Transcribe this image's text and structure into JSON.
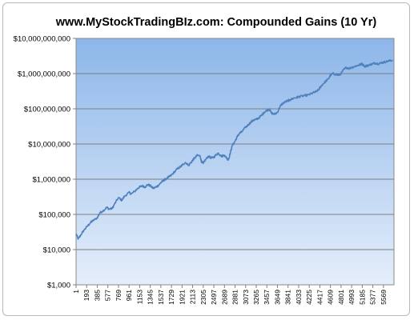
{
  "chart_data": {
    "type": "line",
    "title": "www.MyStockTradingBIz.com:  Compounded Gains (10 Yr)",
    "xlabel": "",
    "ylabel": "",
    "y_scale": "log",
    "ylim": [
      1000,
      10000000000
    ],
    "xlim": [
      1,
      5760
    ],
    "grid": true,
    "legend": "none",
    "y_ticks": [
      1000,
      10000,
      100000,
      1000000,
      10000000,
      100000000,
      1000000000,
      10000000000
    ],
    "y_tick_labels": [
      "$1,000",
      "$10,000",
      "$100,000",
      "$1,000,000",
      "$10,000,000",
      "$100,000,000",
      "$1,000,000,000",
      "$10,000,000,000"
    ],
    "x_tick_labels": [
      "1",
      "193",
      "385",
      "577",
      "769",
      "961",
      "1153",
      "1345",
      "1537",
      "1729",
      "1921",
      "2113",
      "2305",
      "2497",
      "2689",
      "2881",
      "3073",
      "3265",
      "3457",
      "3649",
      "3841",
      "4033",
      "4225",
      "4417",
      "4609",
      "4801",
      "4993",
      "5185",
      "5377",
      "5569"
    ],
    "series": [
      {
        "color": "#4f81bd",
        "x": [
          1,
          40,
          80,
          140,
          200,
          260,
          300,
          385,
          430,
          500,
          560,
          600,
          660,
          700,
          770,
          830,
          880,
          961,
          1000,
          1060,
          1120,
          1153,
          1200,
          1250,
          1300,
          1345,
          1400,
          1450,
          1500,
          1537,
          1580,
          1620,
          1680,
          1729,
          1780,
          1840,
          1900,
          1921,
          1980,
          2040,
          2100,
          2113,
          2150,
          2200,
          2250,
          2270,
          2305,
          2340,
          2400,
          2450,
          2497,
          2540,
          2580,
          2630,
          2689,
          2730,
          2760,
          2800,
          2830,
          2881,
          2920,
          2960,
          3000,
          3073,
          3120,
          3170,
          3220,
          3265,
          3310,
          3360,
          3410,
          3457,
          3500,
          3540,
          3600,
          3649,
          3700,
          3740,
          3800,
          3841,
          3880,
          3940,
          4000,
          4033,
          4100,
          4160,
          4225,
          4280,
          4340,
          4400,
          4417,
          4470,
          4520,
          4570,
          4609,
          4650,
          4700,
          4760,
          4801,
          4850,
          4900,
          4950,
          4993,
          5050,
          5100,
          5150,
          5185,
          5230,
          5280,
          5330,
          5377,
          5420,
          5470,
          5520,
          5569,
          5620,
          5680,
          5740
        ],
        "values": [
          28000,
          20000,
          25000,
          35000,
          45000,
          58000,
          65000,
          80000,
          110000,
          130000,
          160000,
          140000,
          150000,
          200000,
          300000,
          250000,
          330000,
          420000,
          380000,
          450000,
          550000,
          600000,
          650000,
          600000,
          700000,
          650000,
          550000,
          600000,
          680000,
          800000,
          900000,
          1000000,
          1150000,
          1300000,
          1600000,
          2000000,
          2300000,
          2500000,
          3000000,
          2500000,
          3200000,
          3500000,
          4000000,
          4800000,
          4500000,
          3200000,
          2800000,
          3500000,
          4500000,
          4000000,
          4200000,
          5000000,
          5500000,
          4500000,
          4800000,
          4000000,
          3500000,
          6000000,
          9000000,
          12000000,
          16000000,
          20000000,
          22000000,
          30000000,
          35000000,
          42000000,
          48000000,
          50000000,
          55000000,
          65000000,
          80000000,
          90000000,
          100000000,
          75000000,
          70000000,
          80000000,
          120000000,
          140000000,
          160000000,
          170000000,
          180000000,
          200000000,
          210000000,
          220000000,
          230000000,
          240000000,
          250000000,
          280000000,
          300000000,
          350000000,
          400000000,
          500000000,
          600000000,
          700000000,
          900000000,
          1000000000,
          950000000,
          900000000,
          1000000000,
          1300000000,
          1500000000,
          1400000000,
          1500000000,
          1600000000,
          1700000000,
          1800000000,
          1900000000,
          1600000000,
          1700000000,
          1800000000,
          1900000000,
          2000000000,
          1900000000,
          2000000000,
          2100000000,
          2200000000,
          2300000000,
          2400000000
        ]
      }
    ]
  }
}
